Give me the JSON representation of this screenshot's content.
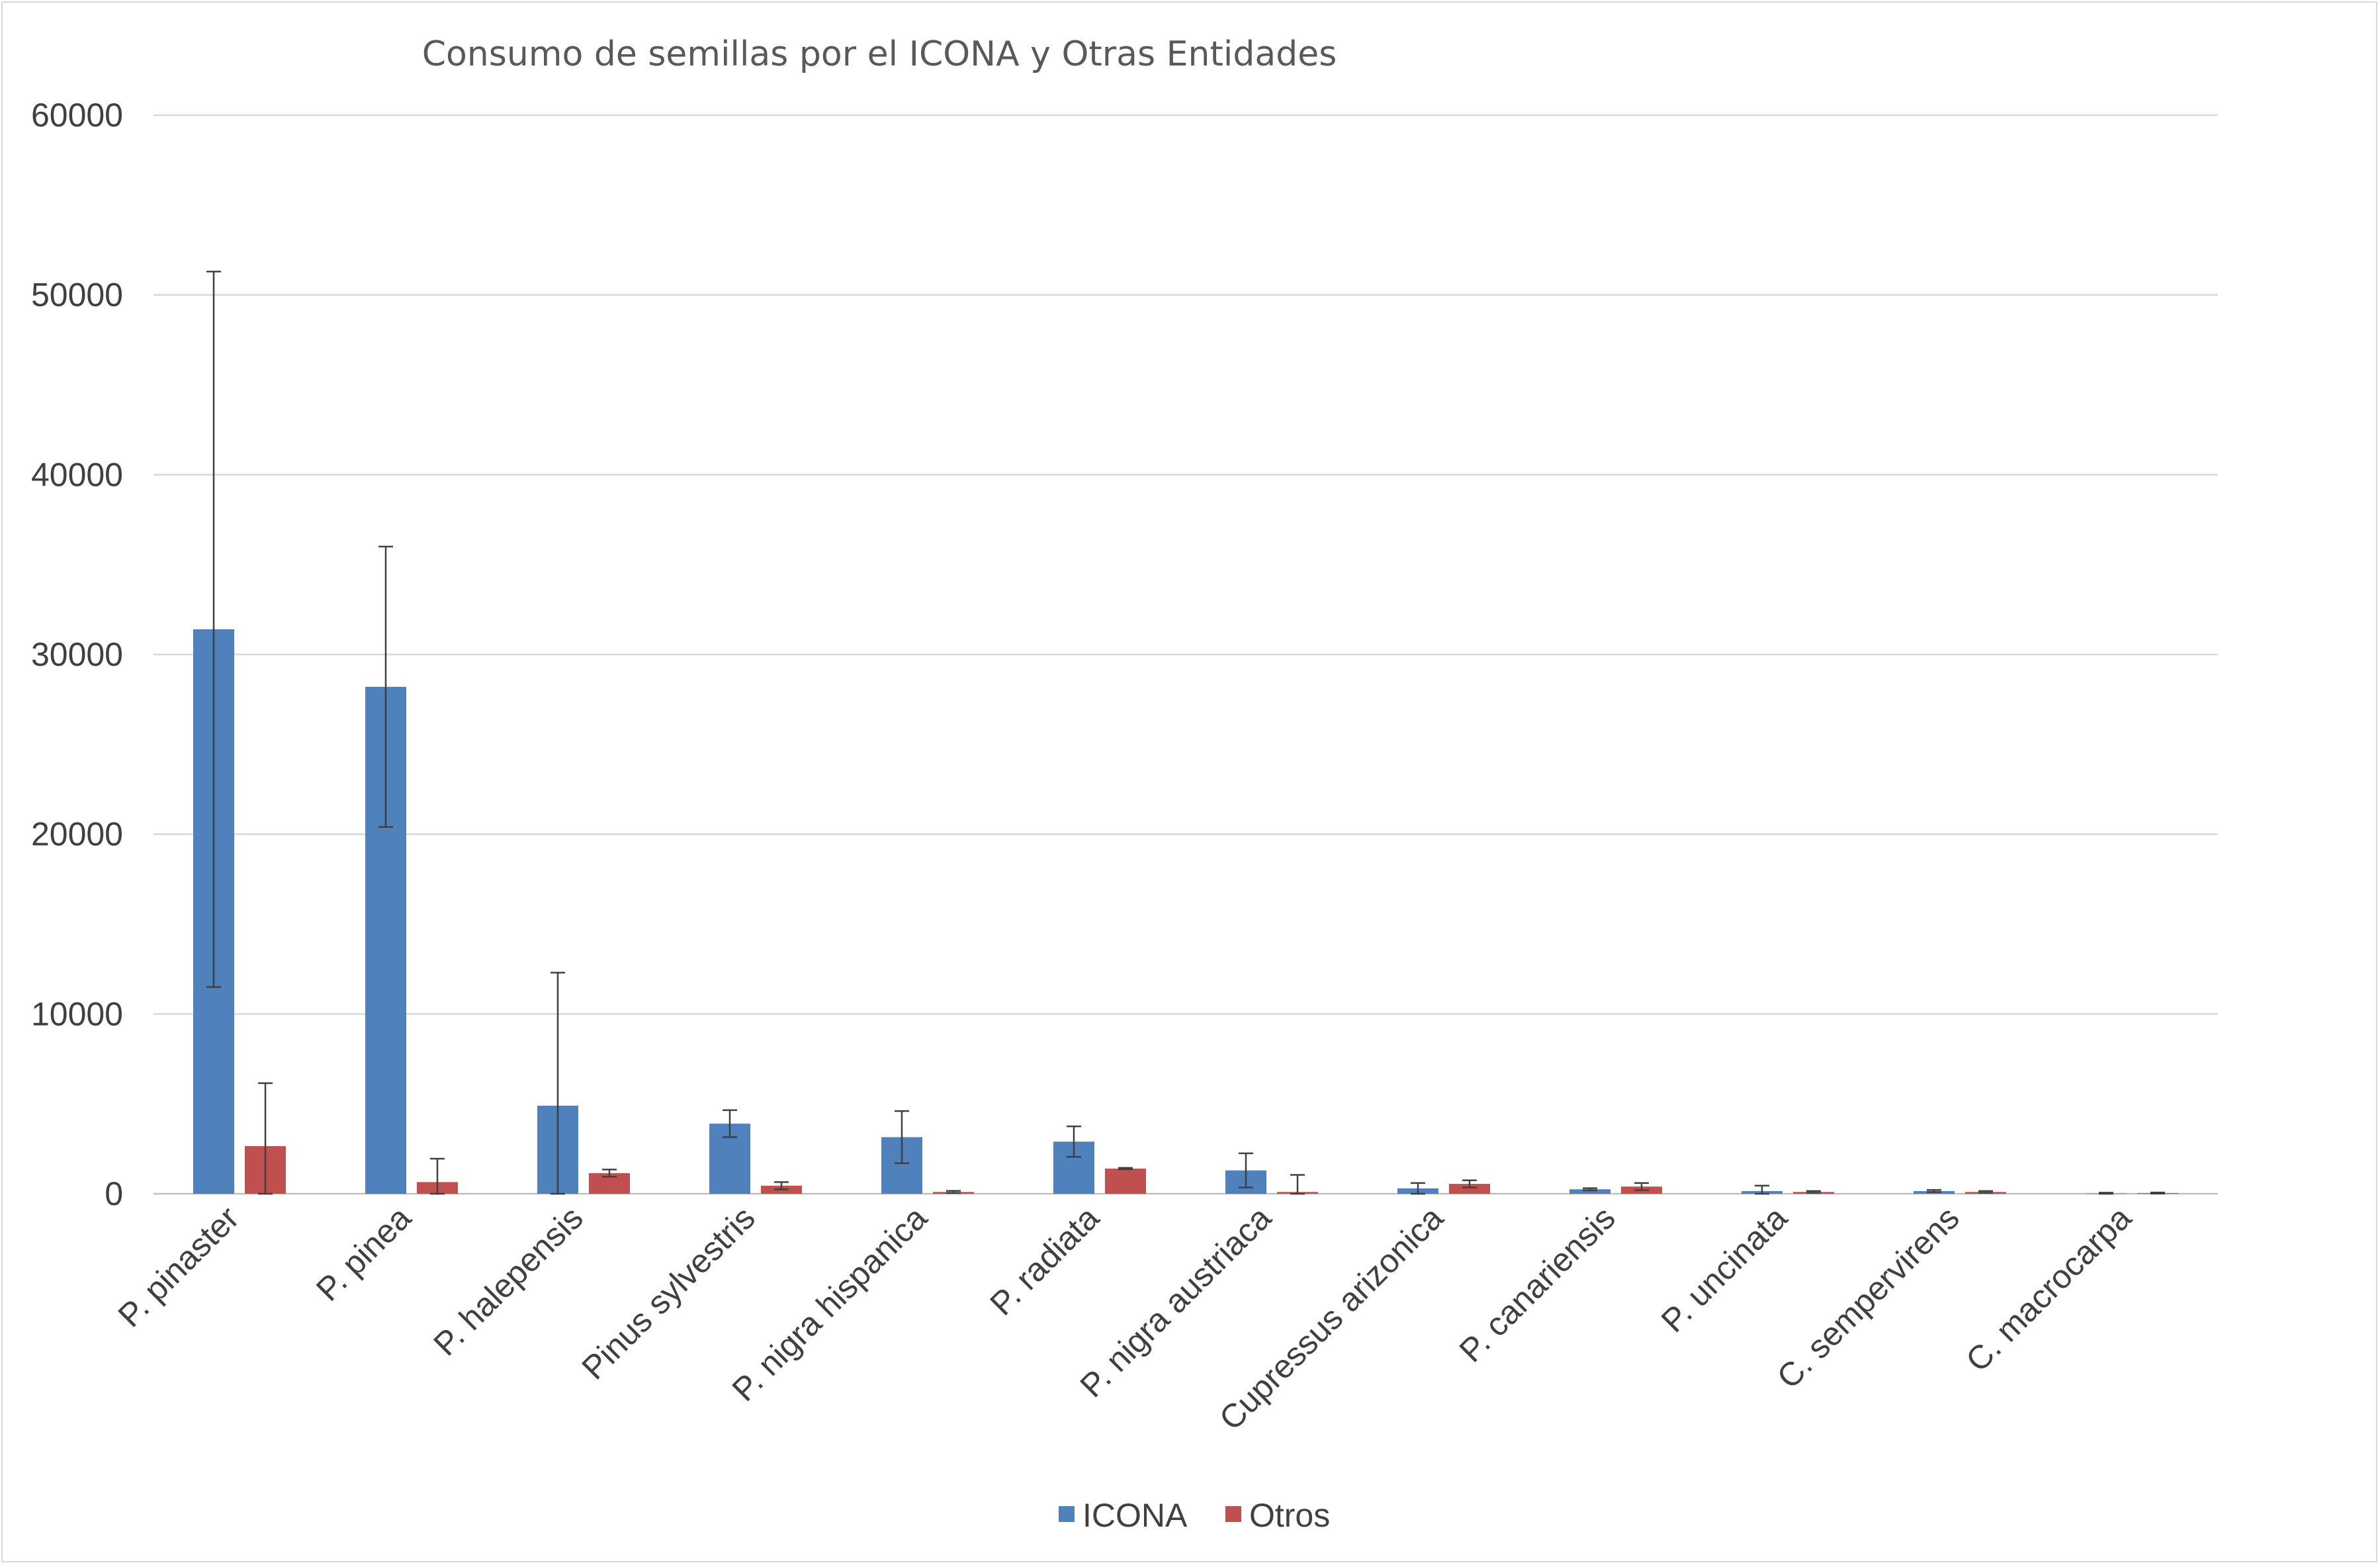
{
  "chart_data": {
    "type": "bar",
    "title": "Consumo de semillas por el ICONA y Otras Entidades",
    "xlabel": "",
    "ylabel": "",
    "ylim": [
      0,
      60000
    ],
    "yticks": [
      0,
      10000,
      20000,
      30000,
      40000,
      50000,
      60000
    ],
    "grid": true,
    "legend_position": "bottom",
    "categories": [
      "P. pinaster",
      "P. pinea",
      "P. halepensis",
      "Pinus sylvestris",
      "P. nigra hispanica",
      "P. radiata",
      "P. nigra austriaca",
      "Cupressus arizonica",
      "P. canariensis",
      "P. uncinata",
      "C. sempervirens",
      "C. macrocarpa"
    ],
    "series": [
      {
        "name": "ICONA",
        "color": "#4f81bd",
        "values": [
          31400,
          28200,
          4900,
          3900,
          3150,
          2900,
          1300,
          300,
          250,
          150,
          150,
          20
        ],
        "error": [
          19900,
          7800,
          7400,
          750,
          1450,
          850,
          950,
          300,
          60,
          300,
          60,
          40
        ]
      },
      {
        "name": "Otros",
        "color": "#c0504d",
        "values": [
          2650,
          650,
          1150,
          450,
          100,
          1400,
          100,
          550,
          400,
          100,
          100,
          40
        ],
        "error": [
          3500,
          1300,
          200,
          200,
          60,
          40,
          950,
          200,
          200,
          50,
          50,
          30
        ]
      }
    ]
  }
}
